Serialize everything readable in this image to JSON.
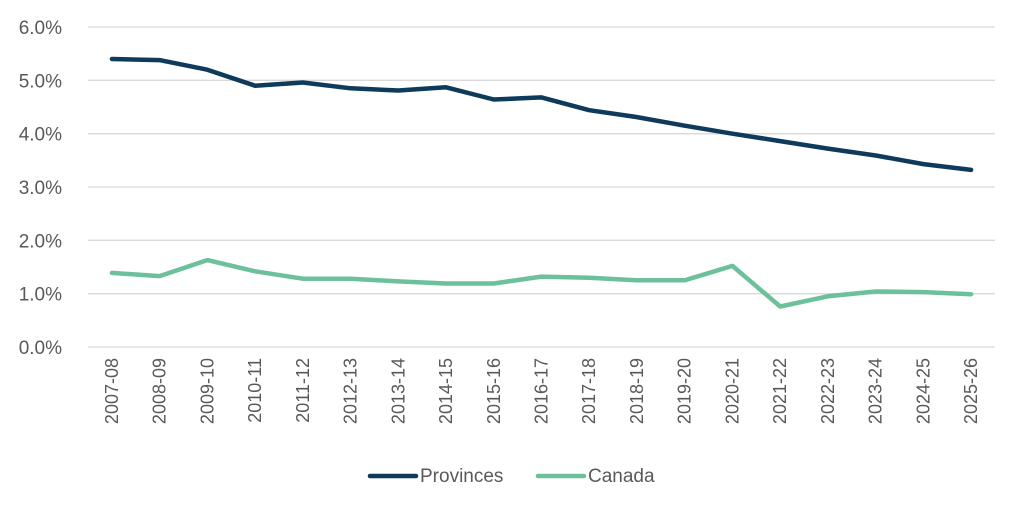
{
  "chart_data": {
    "type": "line",
    "title": "",
    "xlabel": "",
    "ylabel": "",
    "ylim": [
      0,
      6
    ],
    "yticks": [
      "0.0%",
      "1.0%",
      "2.0%",
      "3.0%",
      "4.0%",
      "5.0%",
      "6.0%"
    ],
    "ytick_values": [
      0,
      1,
      2,
      3,
      4,
      5,
      6
    ],
    "grid": true,
    "legend_position": "bottom",
    "categories": [
      "2007-08",
      "2008-09",
      "2009-10",
      "2010-11",
      "2011-12",
      "2012-13",
      "2013-14",
      "2014-15",
      "2015-16",
      "2016-17",
      "2017-18",
      "2018-19",
      "2019-20",
      "2020-21",
      "2021-22",
      "2022-23",
      "2023-24",
      "2024-25",
      "2025-26"
    ],
    "series": [
      {
        "name": "Provinces",
        "color": "#0e3a5c",
        "values": [
          5.4,
          5.38,
          5.2,
          4.9,
          4.96,
          4.85,
          4.81,
          4.87,
          4.64,
          4.68,
          4.44,
          4.31,
          4.15,
          4.0,
          3.86,
          3.72,
          3.59,
          3.43,
          3.32
        ]
      },
      {
        "name": "Canada",
        "color": "#6cc09a",
        "values": [
          1.39,
          1.33,
          1.63,
          1.42,
          1.28,
          1.28,
          1.23,
          1.19,
          1.19,
          1.32,
          1.3,
          1.25,
          1.25,
          1.52,
          0.76,
          0.95,
          1.04,
          1.03,
          0.99
        ]
      }
    ],
    "gridline_color": "#d9d9d9"
  }
}
